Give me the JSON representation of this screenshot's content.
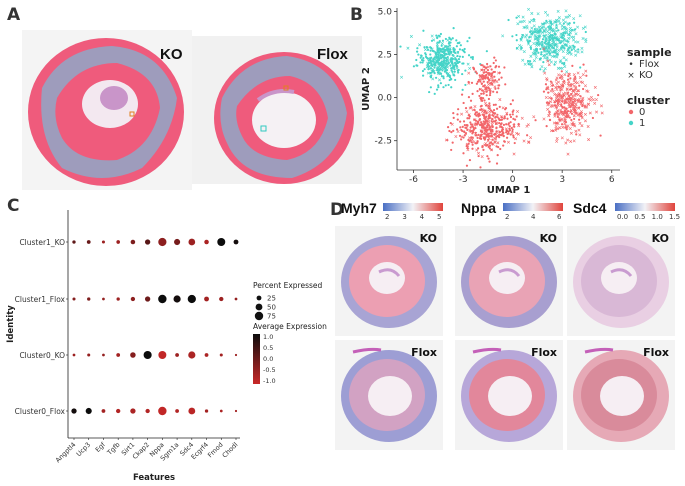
{
  "panels": {
    "a": {
      "letter": "A",
      "ko_label": "KO",
      "flox_label": "Flox"
    },
    "b": {
      "letter": "B"
    },
    "c": {
      "letter": "C"
    },
    "d": {
      "letter": "D",
      "genes": [
        {
          "name": "Myh7",
          "ticks": [
            "2",
            "3",
            "4",
            "5"
          ]
        },
        {
          "name": "Nppa",
          "ticks": [
            "2",
            "4",
            "6"
          ]
        },
        {
          "name": "Sdc4",
          "ticks": [
            "0.0",
            "0.5",
            "1.0",
            "1.5"
          ]
        }
      ],
      "ko_label": "KO",
      "flox_label": "Flox"
    }
  },
  "colors": {
    "cluster0": "#f2666a",
    "cluster1": "#45d4c8",
    "tissue_pink": "#ef5b7c",
    "tissue_blue": "#8fa8c8",
    "dot_dark": "#111111",
    "dot_red": "#b51c1c"
  },
  "chart_data": [
    {
      "type": "scatter",
      "title": "",
      "xlabel": "UMAP 1",
      "ylabel": "UMAP 2",
      "xlim": [
        -7,
        6.5
      ],
      "ylim": [
        -4.2,
        5.2
      ],
      "xticks": [
        "-6",
        "-3",
        "0",
        "3",
        "6"
      ],
      "yticks": [
        "5.0",
        "2.5",
        "0.0",
        "-2.5"
      ],
      "legend": {
        "sample_title": "sample",
        "sample_entries": [
          {
            "label": "Flox",
            "marker": "•"
          },
          {
            "label": "KO",
            "marker": "×"
          }
        ],
        "cluster_title": "cluster",
        "cluster_entries": [
          {
            "label": "0",
            "color": "#f2666a"
          },
          {
            "label": "1",
            "color": "#45d4c8"
          }
        ]
      },
      "series": [
        {
          "name": "cluster 1 (left lobe)",
          "cluster": "1",
          "center": [
            -4.3,
            2.2
          ],
          "spread": [
            1.3,
            1.2
          ]
        },
        {
          "name": "cluster 1 (top right)",
          "cluster": "1",
          "center": [
            2.2,
            3.3
          ],
          "spread": [
            1.7,
            1.3
          ]
        },
        {
          "name": "cluster 0 (lower left)",
          "cluster": "0",
          "center": [
            -1.6,
            -1.8
          ],
          "spread": [
            1.8,
            1.3
          ]
        },
        {
          "name": "cluster 0 (center)",
          "cluster": "0",
          "center": [
            -1.6,
            1.0
          ],
          "spread": [
            0.8,
            1.0
          ]
        },
        {
          "name": "cluster 0 (right lobe)",
          "cluster": "0",
          "center": [
            3.3,
            -0.3
          ],
          "spread": [
            1.3,
            1.6
          ]
        }
      ]
    },
    {
      "type": "dot",
      "title": "",
      "xlabel": "Features",
      "ylabel": "Identity",
      "features": [
        "Angptl4",
        "Ucp3",
        "Egf",
        "Tgfb",
        "Sirt1",
        "Ckap2",
        "Nppa",
        "Sgm1a",
        "Sdc4",
        "Ecgrf4",
        "Fmod",
        "Chodl"
      ],
      "identities": [
        "Cluster1_KO",
        "Cluster1_Flox",
        "Cluster0_KO",
        "Cluster0_Flox"
      ],
      "percent_expressed": [
        [
          12,
          15,
          10,
          14,
          22,
          30,
          72,
          40,
          48,
          22,
          68,
          25
        ],
        [
          10,
          12,
          8,
          12,
          20,
          30,
          75,
          55,
          72,
          25,
          20,
          8
        ],
        [
          8,
          10,
          8,
          15,
          32,
          70,
          68,
          15,
          55,
          15,
          10,
          5
        ],
        [
          30,
          40,
          15,
          20,
          30,
          20,
          75,
          15,
          50,
          12,
          8,
          5
        ]
      ],
      "average_expression": [
        [
          0.2,
          0.1,
          -0.6,
          -0.6,
          -0.2,
          0.3,
          -0.4,
          -0.1,
          -0.6,
          -0.8,
          1.3,
          1.2
        ],
        [
          -0.3,
          -0.2,
          -0.5,
          -0.6,
          -0.4,
          0.0,
          1.3,
          1.2,
          1.3,
          -0.7,
          -0.6,
          -0.5
        ],
        [
          -0.6,
          -0.5,
          -0.5,
          -0.7,
          -0.3,
          1.3,
          -1.1,
          -0.6,
          -0.8,
          -0.8,
          -0.7,
          -0.6
        ],
        [
          1.2,
          1.3,
          -0.7,
          -0.9,
          -0.8,
          -0.9,
          -1.1,
          -0.9,
          -1.0,
          -0.7,
          -0.8,
          -0.7
        ]
      ],
      "size_legend_title": "Percent Expressed",
      "size_legend": [
        25,
        50,
        75
      ],
      "color_legend_title": "Average Expression",
      "color_legend_ticks": [
        "1.0",
        "0.5",
        "0.0",
        "-0.5",
        "-1.0"
      ]
    }
  ]
}
